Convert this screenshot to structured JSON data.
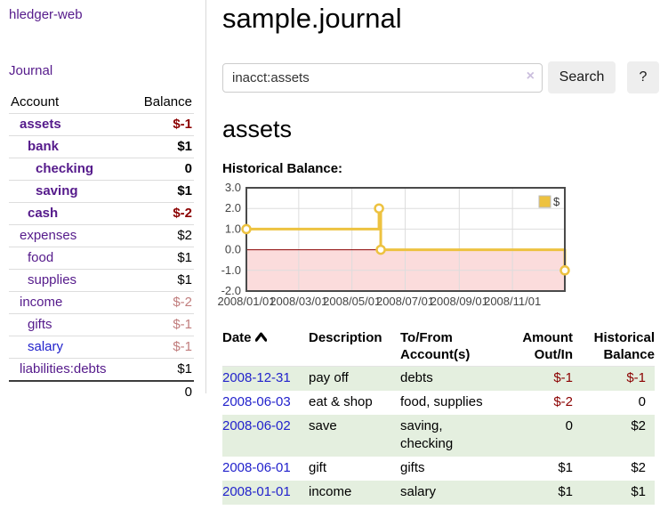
{
  "sidebar": {
    "app_title": "hledger-web",
    "journal_link": "Journal",
    "table": {
      "account_header": "Account",
      "balance_header": "Balance",
      "total": "0"
    },
    "accounts": [
      {
        "name": "assets",
        "balance": "$-1"
      },
      {
        "name": "bank",
        "balance": "$1"
      },
      {
        "name": "checking",
        "balance": "0"
      },
      {
        "name": "saving",
        "balance": "$1"
      },
      {
        "name": "cash",
        "balance": "$-2"
      },
      {
        "name": "expenses",
        "balance": "$2"
      },
      {
        "name": "food",
        "balance": "$1"
      },
      {
        "name": "supplies",
        "balance": "$1"
      },
      {
        "name": "income",
        "balance": "$-2"
      },
      {
        "name": "gifts",
        "balance": "$-1"
      },
      {
        "name": "salary",
        "balance": "$-1"
      },
      {
        "name": "liabilities:debts",
        "balance": "$1"
      }
    ]
  },
  "main": {
    "title": "sample.journal",
    "search": {
      "value": "inacct:assets",
      "clear_icon": "×",
      "button_label": "Search",
      "help_label": "?"
    },
    "account_heading": "assets",
    "chart_label": "Historical Balance:"
  },
  "chart_data": {
    "type": "line",
    "step": true,
    "title": "Historical Balance:",
    "series": [
      {
        "name": "$",
        "color": "#EDC240",
        "points": [
          {
            "date": "2008-01-01",
            "value": 1
          },
          {
            "date": "2008-06-01",
            "value": 2
          },
          {
            "date": "2008-06-03",
            "value": 0
          },
          {
            "date": "2008-12-31",
            "value": -1
          }
        ]
      }
    ],
    "x_range": [
      "2008-01-01",
      "2008-12-31"
    ],
    "x_ticks": [
      "2008/01/01",
      "2008/03/01",
      "2008/05/01",
      "2008/07/01",
      "2008/09/01",
      "2008/11/01"
    ],
    "y_ticks": [
      3.0,
      2.0,
      1.0,
      0.0,
      -1.0,
      -2.0
    ],
    "ylim": [
      -2,
      3
    ],
    "grid": true,
    "legend_position": "top-right",
    "legend_label": "$",
    "negative_region_color": "#FBDCDC",
    "zero_line_color": "#8B0000",
    "grid_color": "#dddddd",
    "border_color": "#4a4a4a",
    "label_color": "#444444"
  },
  "register": {
    "headers": {
      "date": "Date",
      "description": "Description",
      "account": "To/From Account(s)",
      "amount": "Amount Out/In",
      "balance": "Historical Balance"
    },
    "rows": [
      {
        "date": "2008-12-31",
        "description": "pay off",
        "account": "debts",
        "amount": "$-1",
        "balance": "$-1"
      },
      {
        "date": "2008-06-03",
        "description": "eat & shop",
        "account": "food, supplies",
        "amount": "$-2",
        "balance": "0"
      },
      {
        "date": "2008-06-02",
        "description": "save",
        "account": "saving, checking",
        "amount": "0",
        "balance": "$2"
      },
      {
        "date": "2008-06-01",
        "description": "gift",
        "account": "gifts",
        "amount": "$1",
        "balance": "$2"
      },
      {
        "date": "2008-01-01",
        "description": "income",
        "account": "salary",
        "amount": "$1",
        "balance": "$1"
      }
    ]
  }
}
